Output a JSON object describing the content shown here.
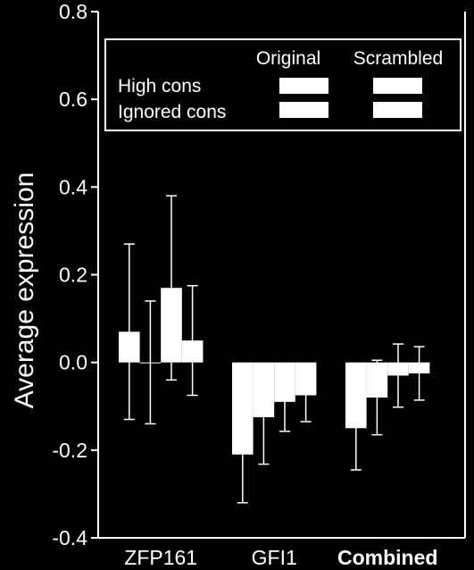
{
  "chart_data": {
    "type": "bar",
    "title": "",
    "xlabel": "",
    "ylabel": "Average expression",
    "ylim": [
      -0.4,
      0.8
    ],
    "yticks": [
      "0.8",
      "0.6",
      "0.4",
      "0.2",
      "0.0",
      "-0.2",
      "-0.4"
    ],
    "grid": false,
    "legend_position": "top",
    "legend": {
      "columns": [
        "Original",
        "Scrambled"
      ],
      "rows": [
        "High cons",
        "Ignored cons"
      ]
    },
    "categories": [
      {
        "label": "ZFP161",
        "bold": false
      },
      {
        "label": "GFI1",
        "bold": false
      },
      {
        "label": "Combined",
        "bold": true
      }
    ],
    "series": [
      {
        "values": [
          0.07,
          -0.21,
          -0.15
        ],
        "errors": [
          0.2,
          0.11,
          0.095
        ]
      },
      {
        "values": [
          0.0,
          -0.125,
          -0.08
        ],
        "errors": [
          0.14,
          0.107,
          0.085
        ]
      },
      {
        "values": [
          0.17,
          -0.09,
          -0.03
        ],
        "errors": [
          0.21,
          0.067,
          0.072
        ]
      },
      {
        "values": [
          0.05,
          -0.075,
          -0.025
        ],
        "errors": [
          0.125,
          0.06,
          0.061
        ]
      }
    ],
    "colors": {
      "background": "#000000",
      "bar": "#ffffff",
      "axis": "#ffffff"
    }
  }
}
